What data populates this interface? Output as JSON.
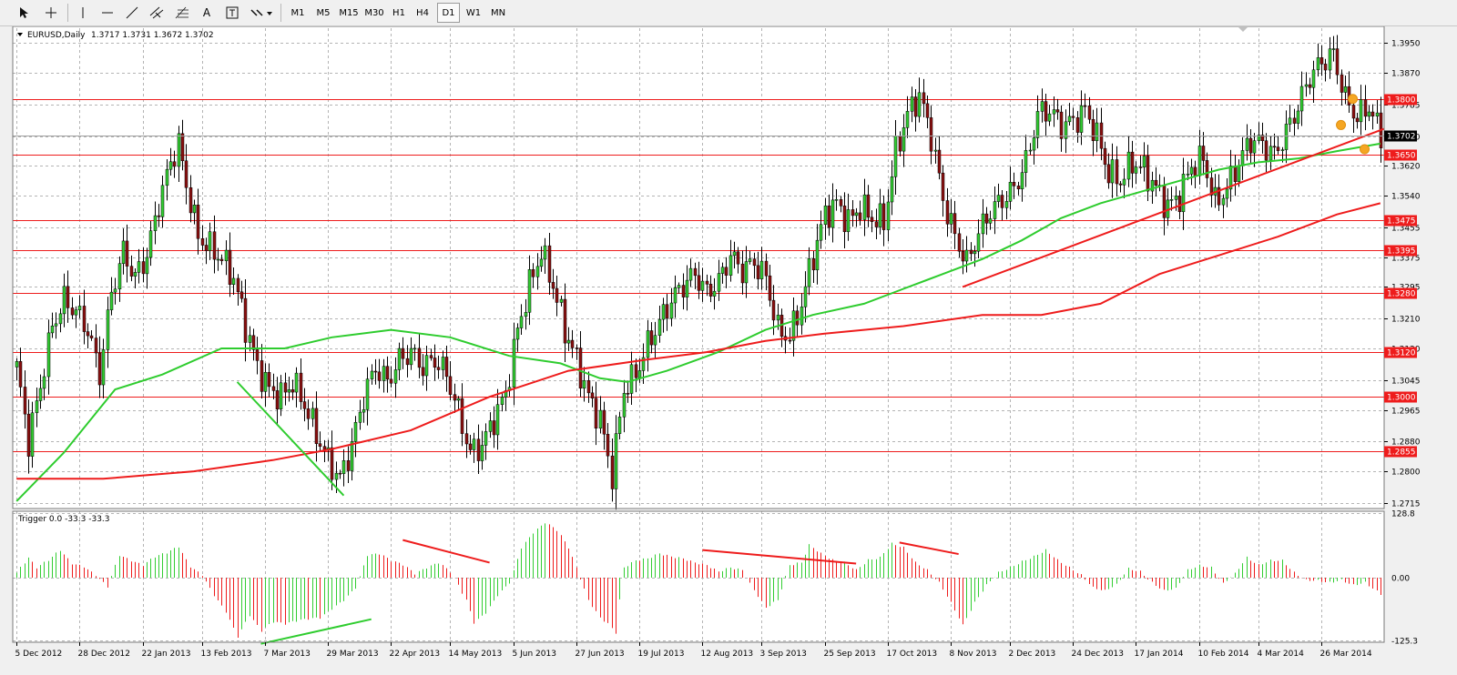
{
  "toolbar": {
    "timeframes": [
      "M1",
      "M5",
      "M15",
      "M30",
      "H1",
      "H4",
      "D1",
      "W1",
      "MN"
    ],
    "active_timeframe": "D1",
    "text_tool_label": "A"
  },
  "chart_data": [
    {
      "type": "candlestick",
      "title": "EURUSD,Daily",
      "ohlc_readout": "1.3717 1.3731 1.3672 1.3702",
      "current_price": "1.3702",
      "x_tick_labels": [
        "5 Dec 2012",
        "28 Dec 2012",
        "22 Jan 2013",
        "13 Feb 2013",
        "7 Mar 2013",
        "29 Mar 2013",
        "22 Apr 2013",
        "14 May 2013",
        "5 Jun 2013",
        "27 Jun 2013",
        "19 Jul 2013",
        "12 Aug 2013",
        "3 Sep 2013",
        "25 Sep 2013",
        "17 Oct 2013",
        "8 Nov 2013",
        "2 Dec 2013",
        "24 Dec 2013",
        "17 Jan 2014",
        "10 Feb 2014",
        "4 Mar 2014",
        "26 Mar 2014"
      ],
      "y_tick_labels": [
        "1.3950",
        "1.3870",
        "1.3785",
        "1.3700",
        "1.3620",
        "1.3540",
        "1.3455",
        "1.3375",
        "1.3295",
        "1.3210",
        "1.3130",
        "1.3045",
        "1.2965",
        "1.2880",
        "1.2800",
        "1.2715"
      ],
      "ylim": [
        1.2705,
        1.399
      ],
      "horizontal_levels": [
        "1.3800",
        "1.3650",
        "1.3475",
        "1.3395",
        "1.3280",
        "1.3120",
        "1.3000",
        "1.2855"
      ],
      "close_path": [
        [
          0,
          1.308
        ],
        [
          3,
          1.288
        ],
        [
          6,
          1.303
        ],
        [
          9,
          1.319
        ],
        [
          12,
          1.326
        ],
        [
          15,
          1.323
        ],
        [
          18,
          1.318
        ],
        [
          21,
          1.306
        ],
        [
          24,
          1.328
        ],
        [
          27,
          1.339
        ],
        [
          30,
          1.332
        ],
        [
          33,
          1.338
        ],
        [
          36,
          1.352
        ],
        [
          39,
          1.363
        ],
        [
          41,
          1.368
        ],
        [
          43,
          1.357
        ],
        [
          46,
          1.343
        ],
        [
          49,
          1.34
        ],
        [
          52,
          1.337
        ],
        [
          55,
          1.332
        ],
        [
          58,
          1.319
        ],
        [
          61,
          1.308
        ],
        [
          64,
          1.302
        ],
        [
          67,
          1.3
        ],
        [
          70,
          1.304
        ],
        [
          73,
          1.298
        ],
        [
          76,
          1.29
        ],
        [
          79,
          1.283
        ],
        [
          82,
          1.278
        ],
        [
          85,
          1.287
        ],
        [
          88,
          1.3
        ],
        [
          91,
          1.308
        ],
        [
          94,
          1.304
        ],
        [
          97,
          1.31
        ],
        [
          100,
          1.312
        ],
        [
          103,
          1.308
        ],
        [
          106,
          1.31
        ],
        [
          109,
          1.306
        ],
        [
          112,
          1.296
        ],
        [
          115,
          1.285
        ],
        [
          118,
          1.287
        ],
        [
          121,
          1.294
        ],
        [
          124,
          1.301
        ],
        [
          127,
          1.318
        ],
        [
          130,
          1.33
        ],
        [
          133,
          1.339
        ],
        [
          136,
          1.33
        ],
        [
          139,
          1.318
        ],
        [
          142,
          1.31
        ],
        [
          145,
          1.3
        ],
        [
          148,
          1.294
        ],
        [
          151,
          1.279
        ],
        [
          154,
          1.302
        ],
        [
          157,
          1.306
        ],
        [
          160,
          1.314
        ],
        [
          163,
          1.32
        ],
        [
          166,
          1.326
        ],
        [
          169,
          1.33
        ],
        [
          172,
          1.333
        ],
        [
          175,
          1.328
        ],
        [
          178,
          1.331
        ],
        [
          181,
          1.338
        ],
        [
          184,
          1.334
        ],
        [
          187,
          1.336
        ],
        [
          190,
          1.332
        ],
        [
          193,
          1.318
        ],
        [
          196,
          1.316
        ],
        [
          199,
          1.325
        ],
        [
          202,
          1.338
        ],
        [
          205,
          1.349
        ],
        [
          208,
          1.352
        ],
        [
          211,
          1.347
        ],
        [
          214,
          1.351
        ],
        [
          217,
          1.348
        ],
        [
          220,
          1.347
        ],
        [
          223,
          1.366
        ],
        [
          226,
          1.376
        ],
        [
          229,
          1.381
        ],
        [
          232,
          1.37
        ],
        [
          235,
          1.353
        ],
        [
          238,
          1.343
        ],
        [
          241,
          1.336
        ],
        [
          244,
          1.344
        ],
        [
          247,
          1.35
        ],
        [
          250,
          1.353
        ],
        [
          253,
          1.356
        ],
        [
          256,
          1.363
        ],
        [
          259,
          1.376
        ],
        [
          262,
          1.377
        ],
        [
          265,
          1.373
        ],
        [
          268,
          1.374
        ],
        [
          271,
          1.377
        ],
        [
          274,
          1.37
        ],
        [
          277,
          1.36
        ],
        [
          280,
          1.358
        ],
        [
          283,
          1.363
        ],
        [
          286,
          1.361
        ],
        [
          289,
          1.356
        ],
        [
          292,
          1.351
        ],
        [
          295,
          1.354
        ],
        [
          298,
          1.362
        ],
        [
          301,
          1.364
        ],
        [
          304,
          1.352
        ],
        [
          307,
          1.356
        ],
        [
          310,
          1.363
        ],
        [
          313,
          1.369
        ],
        [
          316,
          1.368
        ],
        [
          319,
          1.365
        ],
        [
          322,
          1.371
        ],
        [
          325,
          1.378
        ],
        [
          328,
          1.386
        ],
        [
          331,
          1.39
        ],
        [
          334,
          1.392
        ],
        [
          337,
          1.38
        ],
        [
          340,
          1.375
        ],
        [
          343,
          1.378
        ],
        [
          346,
          1.37
        ]
      ],
      "moving_averages": [
        {
          "color": "#2ecc2e",
          "points": [
            [
              0,
              1.272
            ],
            [
              12,
              1.285
            ],
            [
              25,
              1.302
            ],
            [
              37,
              1.306
            ],
            [
              52,
              1.313
            ],
            [
              68,
              1.313
            ],
            [
              80,
              1.316
            ],
            [
              95,
              1.318
            ],
            [
              110,
              1.316
            ],
            [
              125,
              1.311
            ],
            [
              138,
              1.309
            ],
            [
              148,
              1.305
            ],
            [
              155,
              1.304
            ],
            [
              165,
              1.307
            ],
            [
              178,
              1.312
            ],
            [
              190,
              1.318
            ],
            [
              202,
              1.322
            ],
            [
              215,
              1.325
            ],
            [
              225,
              1.329
            ],
            [
              235,
              1.333
            ],
            [
              245,
              1.337
            ],
            [
              255,
              1.342
            ],
            [
              265,
              1.348
            ],
            [
              275,
              1.352
            ],
            [
              285,
              1.355
            ],
            [
              295,
              1.358
            ],
            [
              305,
              1.361
            ],
            [
              315,
              1.363
            ],
            [
              325,
              1.364
            ],
            [
              335,
              1.366
            ],
            [
              346,
              1.368
            ]
          ]
        },
        {
          "color": "#ee1c1c",
          "points": [
            [
              0,
              1.278
            ],
            [
              22,
              1.278
            ],
            [
              45,
              1.28
            ],
            [
              65,
              1.283
            ],
            [
              80,
              1.286
            ],
            [
              100,
              1.291
            ],
            [
              120,
              1.3
            ],
            [
              140,
              1.307
            ],
            [
              160,
              1.31
            ],
            [
              175,
              1.312
            ],
            [
              190,
              1.315
            ],
            [
              205,
              1.317
            ],
            [
              225,
              1.319
            ],
            [
              245,
              1.322
            ],
            [
              260,
              1.322
            ],
            [
              275,
              1.325
            ],
            [
              290,
              1.333
            ],
            [
              305,
              1.338
            ],
            [
              320,
              1.343
            ],
            [
              335,
              1.349
            ],
            [
              346,
              1.352
            ]
          ]
        }
      ],
      "trendlines": [
        {
          "color": "#ee1c1c",
          "points": [
            [
              240,
              1.3295
            ],
            [
              390,
              1.372
            ]
          ]
        },
        {
          "color": "#2ecc2e",
          "points": [
            [
              56,
              1.304
            ],
            [
              83,
              1.2735
            ]
          ]
        }
      ],
      "markers": [
        [
          339,
          1.38
        ],
        [
          336,
          1.373
        ],
        [
          342,
          1.3665
        ]
      ]
    },
    {
      "type": "histogram",
      "title": "Trigger 0.0 -33.3 -33.3",
      "y_tick_labels": [
        "128.8",
        "0.00",
        "-125.3"
      ],
      "ylim": [
        -125.3,
        128.8
      ],
      "keypoints": [
        [
          0,
          10
        ],
        [
          3,
          40
        ],
        [
          5,
          20
        ],
        [
          8,
          35
        ],
        [
          11,
          55
        ],
        [
          14,
          28
        ],
        [
          17,
          22
        ],
        [
          20,
          5
        ],
        [
          23,
          -18
        ],
        [
          26,
          45
        ],
        [
          29,
          34
        ],
        [
          32,
          25
        ],
        [
          35,
          42
        ],
        [
          38,
          50
        ],
        [
          41,
          62
        ],
        [
          44,
          22
        ],
        [
          47,
          5
        ],
        [
          50,
          -35
        ],
        [
          53,
          -68
        ],
        [
          56,
          -118
        ],
        [
          59,
          -75
        ],
        [
          62,
          -106
        ],
        [
          65,
          -88
        ],
        [
          68,
          -92
        ],
        [
          71,
          -86
        ],
        [
          74,
          -82
        ],
        [
          77,
          -80
        ],
        [
          80,
          -62
        ],
        [
          83,
          -45
        ],
        [
          86,
          -20
        ],
        [
          89,
          45
        ],
        [
          92,
          48
        ],
        [
          95,
          34
        ],
        [
          98,
          26
        ],
        [
          101,
          8
        ],
        [
          104,
          20
        ],
        [
          107,
          30
        ],
        [
          110,
          12
        ],
        [
          112,
          -15
        ],
        [
          114,
          -45
        ],
        [
          116,
          -90
        ],
        [
          119,
          -70
        ],
        [
          122,
          -35
        ],
        [
          125,
          -10
        ],
        [
          128,
          60
        ],
        [
          131,
          90
        ],
        [
          134,
          110
        ],
        [
          137,
          95
        ],
        [
          140,
          60
        ],
        [
          142,
          20
        ],
        [
          145,
          -45
        ],
        [
          148,
          -80
        ],
        [
          150,
          -92
        ],
        [
          152,
          -110
        ],
        [
          154,
          20
        ],
        [
          157,
          34
        ],
        [
          160,
          38
        ],
        [
          163,
          48
        ],
        [
          166,
          42
        ],
        [
          169,
          38
        ],
        [
          172,
          30
        ],
        [
          175,
          25
        ],
        [
          178,
          12
        ],
        [
          181,
          20
        ],
        [
          184,
          15
        ],
        [
          187,
          -25
        ],
        [
          190,
          -60
        ],
        [
          193,
          -45
        ],
        [
          196,
          25
        ],
        [
          199,
          30
        ],
        [
          201,
          65
        ],
        [
          204,
          48
        ],
        [
          207,
          35
        ],
        [
          210,
          30
        ],
        [
          213,
          15
        ],
        [
          216,
          35
        ],
        [
          219,
          40
        ],
        [
          222,
          68
        ],
        [
          225,
          60
        ],
        [
          228,
          30
        ],
        [
          231,
          15
        ],
        [
          234,
          -10
        ],
        [
          237,
          -50
        ],
        [
          240,
          -95
        ],
        [
          243,
          -50
        ],
        [
          246,
          -15
        ],
        [
          249,
          10
        ],
        [
          252,
          20
        ],
        [
          255,
          32
        ],
        [
          258,
          42
        ],
        [
          261,
          55
        ],
        [
          264,
          35
        ],
        [
          267,
          20
        ],
        [
          270,
          5
        ],
        [
          273,
          -20
        ],
        [
          276,
          -26
        ],
        [
          279,
          -14
        ],
        [
          282,
          18
        ],
        [
          285,
          12
        ],
        [
          288,
          -10
        ],
        [
          291,
          -26
        ],
        [
          294,
          -22
        ],
        [
          297,
          15
        ],
        [
          300,
          24
        ],
        [
          303,
          20
        ],
        [
          306,
          -12
        ],
        [
          309,
          8
        ],
        [
          312,
          40
        ],
        [
          315,
          25
        ],
        [
          318,
          34
        ],
        [
          321,
          34
        ],
        [
          324,
          10
        ],
        [
          327,
          -5
        ],
        [
          330,
          -6
        ],
        [
          333,
          -10
        ],
        [
          336,
          -5
        ],
        [
          339,
          -15
        ],
        [
          342,
          -10
        ],
        [
          346,
          -33
        ]
      ],
      "trendlines": [
        {
          "color": "#ee1c1c",
          "points": [
            [
              98,
              75
            ],
            [
              120,
              30
            ]
          ]
        },
        {
          "color": "#ee1c1c",
          "points": [
            [
              174,
              55
            ],
            [
              213,
              28
            ]
          ]
        },
        {
          "color": "#ee1c1c",
          "points": [
            [
              224,
              70
            ],
            [
              239,
              47
            ]
          ]
        },
        {
          "color": "#2ecc2e",
          "points": [
            [
              62,
              -132
            ],
            [
              90,
              -83
            ]
          ]
        }
      ]
    }
  ]
}
